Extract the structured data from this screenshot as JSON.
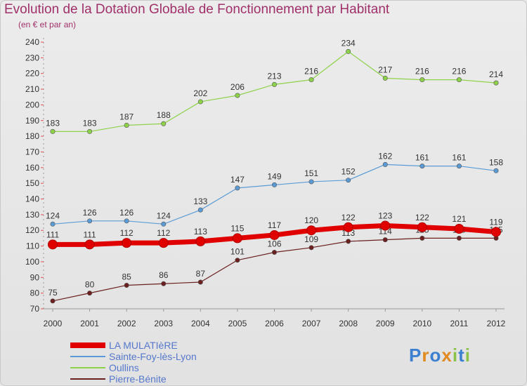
{
  "title": "Evolution de la Dotation Globale de Fonctionnement par Habitant",
  "subtitle": "(en € et par an)",
  "logo": {
    "letters": [
      "P",
      "r",
      "o",
      "x",
      "i",
      "t",
      "i"
    ],
    "colors": [
      "#3a7fd0",
      "#e08a20",
      "#3a7fd0",
      "#e08a20",
      "#8bc34a",
      "#3a7fd0",
      "#8bc34a"
    ]
  },
  "chart_data": {
    "type": "line",
    "x": [
      "2000",
      "2001",
      "2002",
      "2003",
      "2004",
      "2005",
      "2006",
      "2007",
      "2008",
      "2009",
      "2010",
      "2011",
      "2012"
    ],
    "ylim": [
      70,
      240
    ],
    "yticks": [
      70,
      80,
      90,
      100,
      110,
      120,
      130,
      140,
      150,
      160,
      170,
      180,
      190,
      200,
      210,
      220,
      230,
      240
    ],
    "grid": false,
    "legend_position": "bottom-left",
    "series": [
      {
        "name": "LA MULATIèRE",
        "color": "#e00000",
        "values": [
          111,
          111,
          112,
          112,
          113,
          115,
          117,
          120,
          122,
          123,
          122,
          121,
          119
        ]
      },
      {
        "name": "Sainte-Foy-lès-Lyon",
        "color": "#5b9bd5",
        "values": [
          124,
          126,
          126,
          124,
          133,
          147,
          149,
          151,
          152,
          162,
          161,
          161,
          158
        ]
      },
      {
        "name": "Oullins",
        "color": "#8ed24a",
        "values": [
          183,
          183,
          187,
          188,
          202,
          206,
          213,
          216,
          234,
          217,
          216,
          216,
          214
        ]
      },
      {
        "name": "Pierre-Bénite",
        "color": "#6b1f1f",
        "values": [
          75,
          80,
          85,
          86,
          87,
          101,
          106,
          109,
          113,
          114,
          115,
          115,
          115
        ]
      }
    ]
  }
}
